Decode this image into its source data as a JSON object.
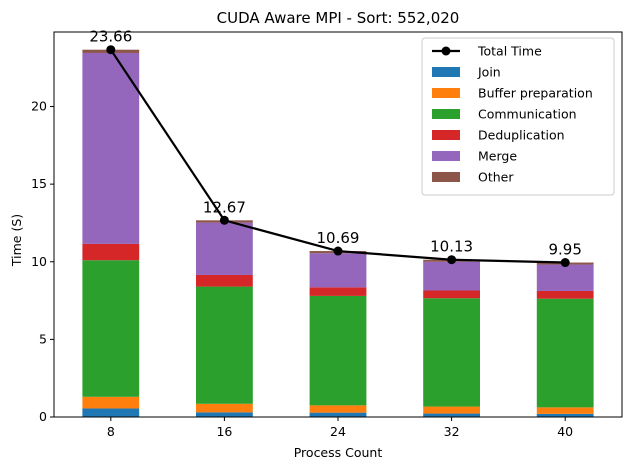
{
  "chart_data": {
    "type": "bar",
    "stacked": true,
    "title": "CUDA Aware MPI - Sort: 552,020",
    "xlabel": "Process Count",
    "ylabel": "Time (S)",
    "categories": [
      "8",
      "16",
      "24",
      "32",
      "40"
    ],
    "ylim": [
      0,
      24.8
    ],
    "yticks": [
      0,
      5,
      10,
      15,
      20
    ],
    "grid": false,
    "legend_position": "top-right",
    "series": [
      {
        "name": "Join",
        "color": "#1f77b4",
        "values": [
          0.55,
          0.3,
          0.28,
          0.22,
          0.2
        ]
      },
      {
        "name": "Buffer preparation",
        "color": "#ff7f0e",
        "values": [
          0.75,
          0.55,
          0.47,
          0.45,
          0.42
        ]
      },
      {
        "name": "Communication",
        "color": "#2ca02c",
        "values": [
          8.8,
          7.55,
          7.05,
          6.98,
          7.0
        ]
      },
      {
        "name": "Deduplication",
        "color": "#d62728",
        "values": [
          1.05,
          0.75,
          0.55,
          0.5,
          0.5
        ]
      },
      {
        "name": "Merge",
        "color": "#9467bd",
        "values": [
          12.3,
          3.37,
          2.2,
          1.85,
          1.7
        ]
      },
      {
        "name": "Other",
        "color": "#8c564b",
        "values": [
          0.21,
          0.15,
          0.14,
          0.13,
          0.13
        ]
      }
    ],
    "line_series": {
      "name": "Total Time",
      "color": "#000000",
      "values": [
        23.66,
        12.67,
        10.69,
        10.13,
        9.95
      ],
      "labels": [
        "23.66",
        "12.67",
        "10.69",
        "10.13",
        "9.95"
      ]
    },
    "ytick_labels": [
      "0",
      "5",
      "10",
      "15",
      "20"
    ]
  }
}
